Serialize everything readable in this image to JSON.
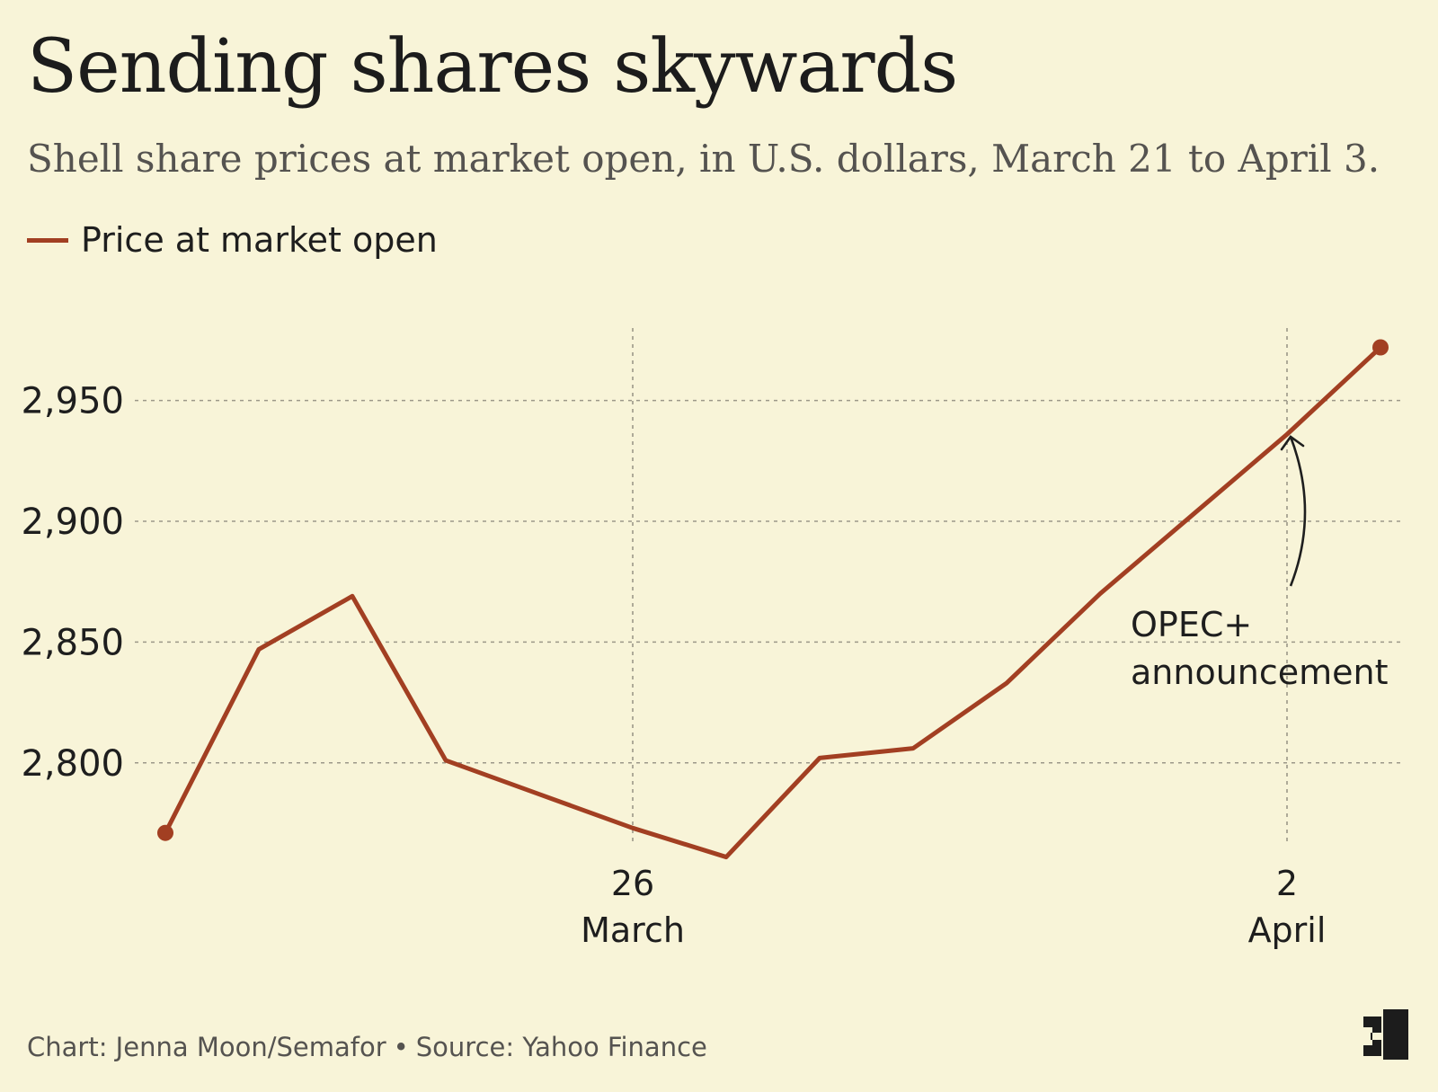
{
  "header": {
    "title": "Sending shares skywards",
    "subtitle": "Shell share prices at market open, in U.S. dollars, March 21 to April 3."
  },
  "footer": {
    "credit": "Chart: Jenna Moon/Semafor",
    "separator": "•",
    "source": "Source: Yahoo Finance"
  },
  "chart_data": {
    "type": "line",
    "x": [
      "2023-03-21",
      "2023-03-22",
      "2023-03-23",
      "2023-03-24",
      "2023-03-25",
      "2023-03-26",
      "2023-03-27",
      "2023-03-28",
      "2023-03-29",
      "2023-03-30",
      "2023-03-31",
      "2023-04-01",
      "2023-04-02",
      "2023-04-03"
    ],
    "series": [
      {
        "name": "Price at market open",
        "values": [
          2771,
          2847,
          2869,
          2801,
          2787,
          2773,
          2761,
          2802,
          2806,
          2833,
          2870,
          2903,
          2936,
          2972
        ],
        "color": "#a23f22"
      }
    ],
    "y_ticks": [
      2800,
      2850,
      2900,
      2950
    ],
    "y_tick_labels": [
      "2,800",
      "2,850",
      "2,900",
      "2,950"
    ],
    "ylim": [
      2740,
      2980
    ],
    "x_ticks": [
      {
        "date": "2023-03-26",
        "day": "26",
        "month": "March"
      },
      {
        "date": "2023-04-02",
        "day": "2",
        "month": "April"
      }
    ],
    "grid": true,
    "legend": "top-left",
    "annotation": {
      "date": "2023-04-02",
      "lines": [
        "OPEC+",
        "announcement"
      ]
    }
  }
}
